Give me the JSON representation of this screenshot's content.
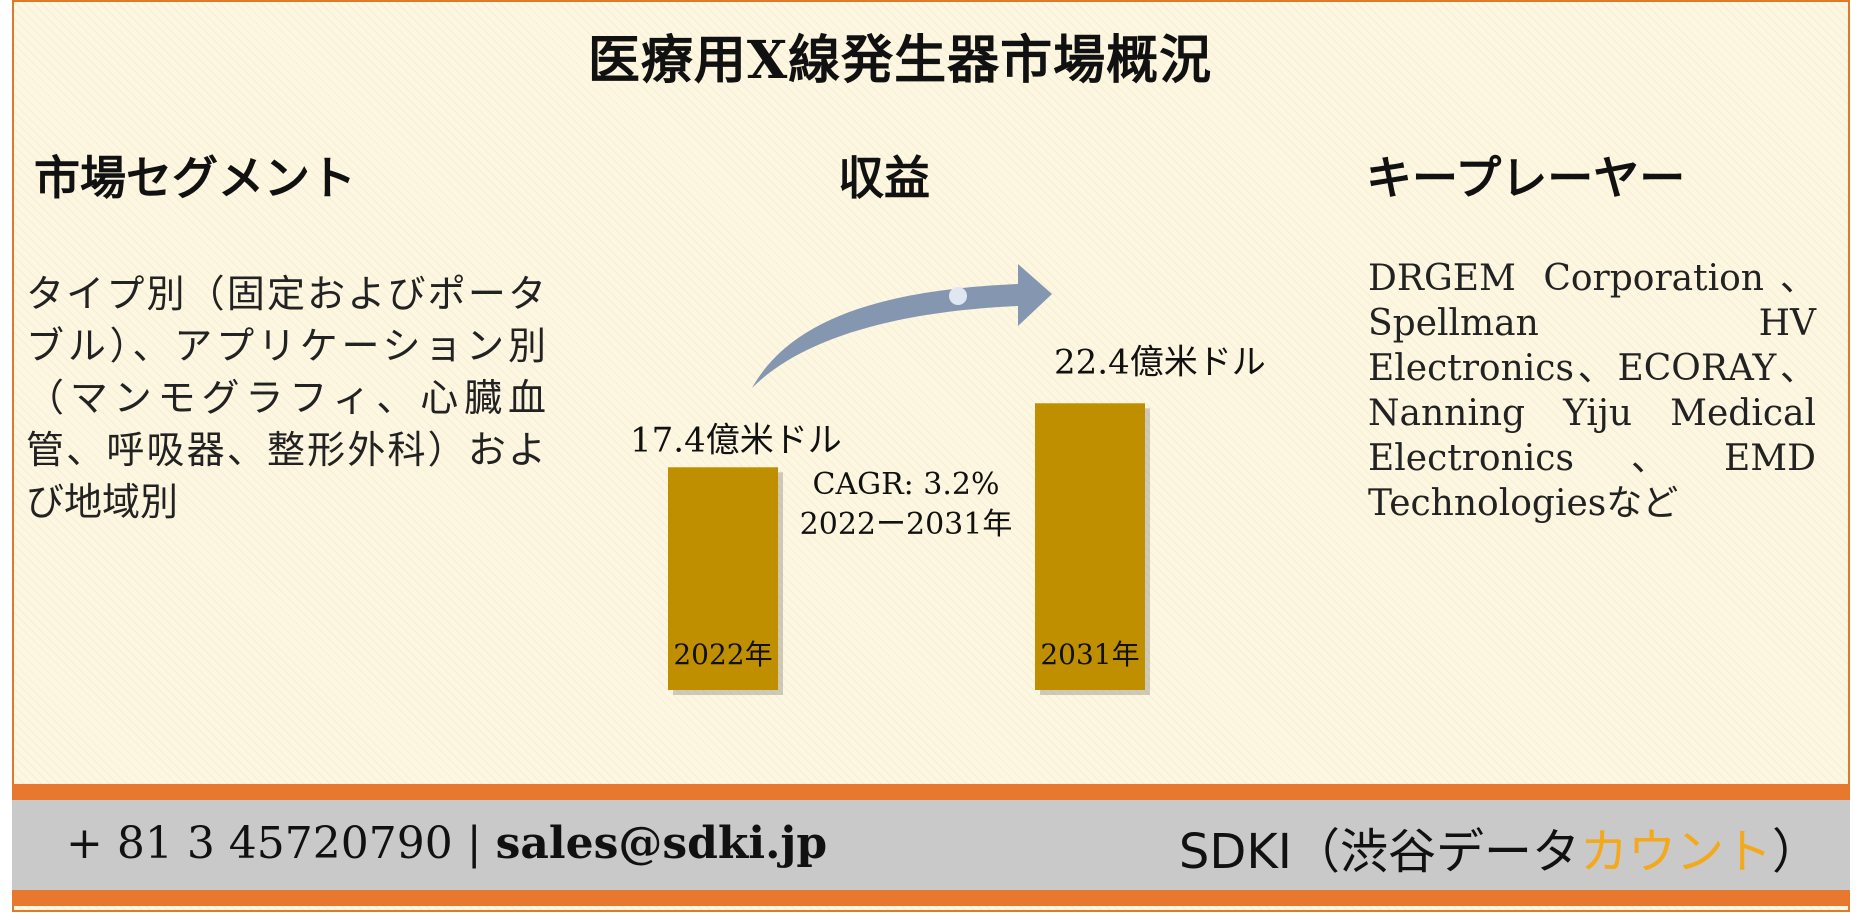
{
  "title": "医療用X線発生器市場概況",
  "sections": {
    "segments": {
      "heading": "市場セグメント",
      "body": "タイプ別（固定およびポータブル）、アプリケーション別（マンモグラフィ、心臓血管、呼吸器、整形外科）および地域別"
    },
    "revenue": {
      "heading": "収益"
    },
    "key_players": {
      "heading": "キープレーヤー",
      "body": "DRGEM Corporation、Spellman HV Electronics、ECORAY、Nanning Yiju Medical Electronics、EMD Technologiesなど"
    }
  },
  "chart_data": {
    "type": "bar",
    "categories": [
      "2022年",
      "2031年"
    ],
    "values": [
      17.4,
      22.4
    ],
    "value_labels": [
      "17.4億米ドル",
      "22.4億米ドル"
    ],
    "cagr_label": "CAGR: 3.2%",
    "cagr_period": "2022ー2031年",
    "bar_color": "#bf8f00",
    "arrow_color": "#8496b0"
  },
  "footer": {
    "phone": "+ 81 3 45720790",
    "separator": "|",
    "email": "sales@sdki.jp",
    "brand_main": "SDKI（渋谷データ",
    "brand_accent": "カウント",
    "brand_end": "）",
    "accent_color": "#f4a81c"
  }
}
